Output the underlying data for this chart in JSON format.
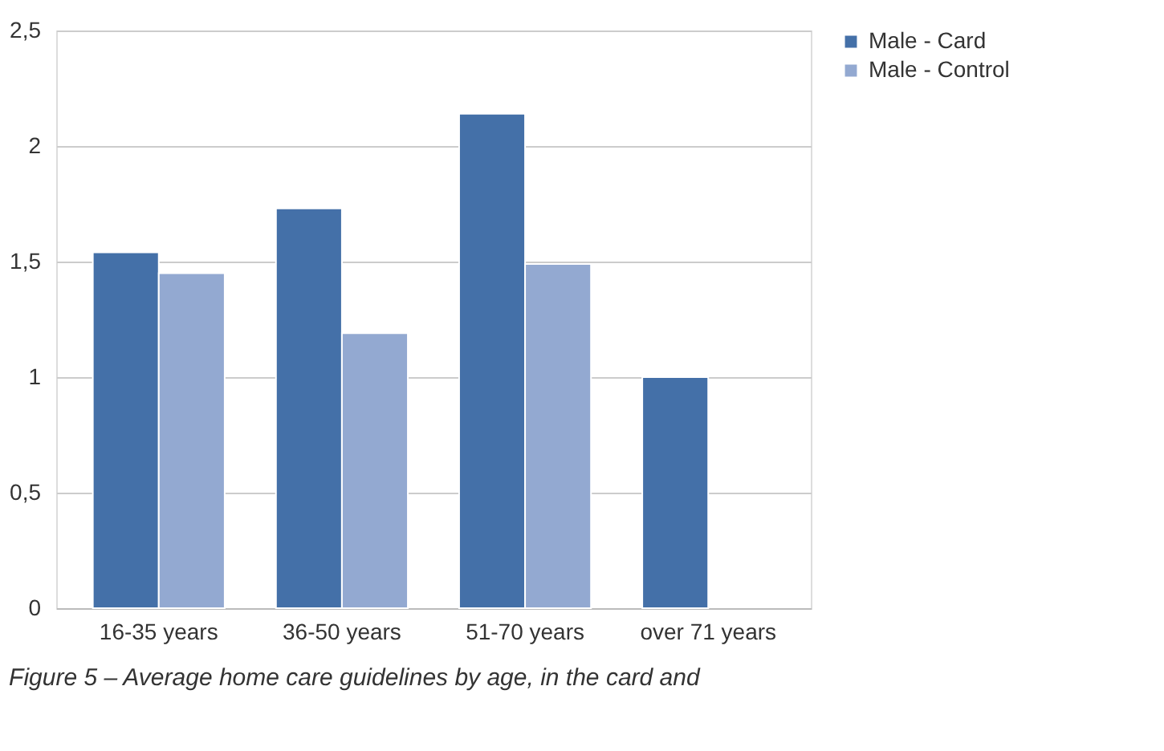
{
  "chart_data": {
    "type": "bar",
    "categories": [
      "16-35 years",
      "36-50 years",
      "51-70 years",
      "over 71 years"
    ],
    "series": [
      {
        "name": "Male - Card",
        "color": "#4470a8",
        "values": [
          1.54,
          1.73,
          2.14,
          1.0
        ]
      },
      {
        "name": "Male - Control",
        "color": "#93a9d1",
        "values": [
          1.45,
          1.19,
          1.49,
          null
        ]
      }
    ],
    "ylim": [
      0,
      2.5
    ],
    "yticks": [
      0,
      {
        "value": 0.5,
        "label": "0,5"
      },
      1,
      {
        "value": 1.5,
        "label": "1,5"
      },
      2,
      {
        "value": 2.5,
        "label": "2,5"
      }
    ],
    "grid": "y",
    "legend": "right",
    "annotations": [
      "Figure 5 –      Average home care guidelines by age, in the card and"
    ]
  }
}
